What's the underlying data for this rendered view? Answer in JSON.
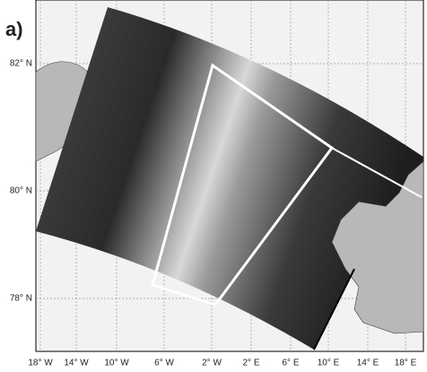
{
  "panel_label": "a)",
  "lat_labels": [
    "82° N",
    "80° N",
    "78° N"
  ],
  "lon_labels": [
    "18° W",
    "14° W",
    "10° W",
    "6° W",
    "2° W",
    "2° E",
    "6° E",
    "10° E",
    "14° E",
    "18° E"
  ]
}
